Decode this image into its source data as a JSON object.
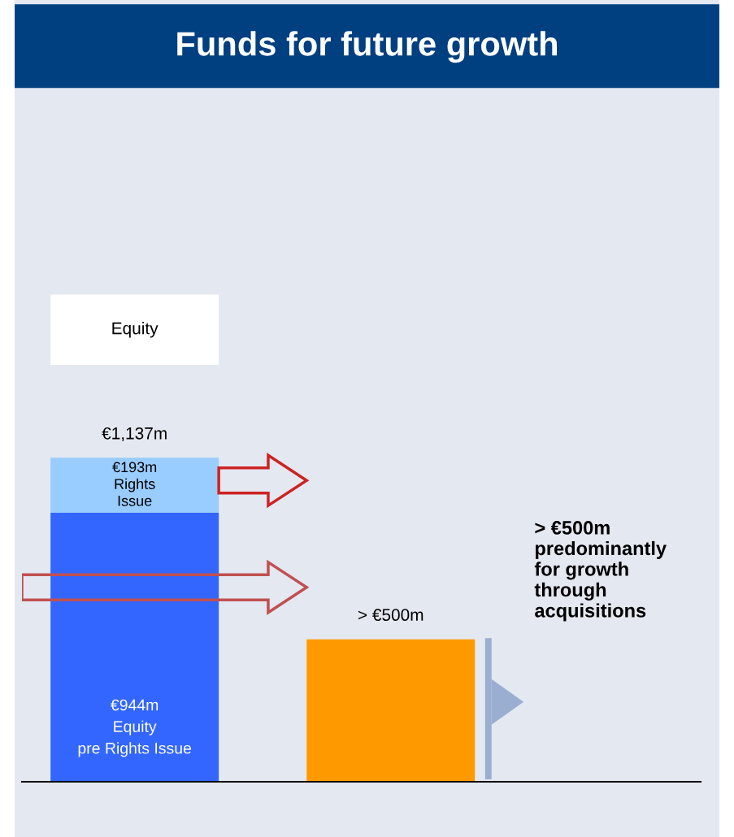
{
  "chart_data": {
    "type": "bar",
    "title": "Funds for future growth",
    "stacked": true,
    "categories": [
      null,
      null
    ],
    "series": [
      {
        "color": "#3366ff",
        "values": [
          944,
          null
        ],
        "value_labels": [
          "€944m\nEquity\npre Rights Issue",
          null
        ]
      },
      {
        "color": "#99ccff",
        "values": [
          193,
          null
        ],
        "value_labels": [
          "€193m\nRights\nIssue",
          null
        ]
      },
      {
        "color": "#ff9900",
        "values": [
          null,
          500
        ]
      }
    ],
    "totals": [
      "€1,137m",
      "> €500m"
    ],
    "annotations": [
      "Equity",
      "> €500m\npredominantly\nfor growth\nthrough\nacquisitions"
    ],
    "legend": false
  }
}
